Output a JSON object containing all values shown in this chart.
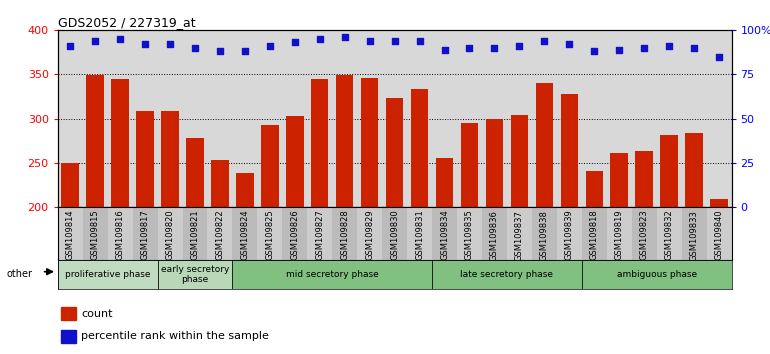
{
  "title": "GDS2052 / 227319_at",
  "samples": [
    "GSM109814",
    "GSM109815",
    "GSM109816",
    "GSM109817",
    "GSM109820",
    "GSM109821",
    "GSM109822",
    "GSM109824",
    "GSM109825",
    "GSM109826",
    "GSM109827",
    "GSM109828",
    "GSM109829",
    "GSM109830",
    "GSM109831",
    "GSM109834",
    "GSM109835",
    "GSM109836",
    "GSM109837",
    "GSM109838",
    "GSM109839",
    "GSM109818",
    "GSM109819",
    "GSM109823",
    "GSM109832",
    "GSM109833",
    "GSM109840"
  ],
  "counts": [
    250,
    349,
    345,
    309,
    309,
    278,
    253,
    238,
    293,
    303,
    345,
    349,
    346,
    323,
    333,
    255,
    295,
    300,
    304,
    340,
    328,
    241,
    261,
    263,
    281,
    284,
    209
  ],
  "percentiles": [
    91,
    94,
    95,
    92,
    92,
    90,
    88,
    88,
    91,
    93,
    95,
    96,
    94,
    94,
    94,
    89,
    90,
    90,
    91,
    94,
    92,
    88,
    89,
    90,
    91,
    90,
    85
  ],
  "bar_color": "#cc2200",
  "dot_color": "#1111cc",
  "bar_bottom": 200,
  "left_ylim": [
    200,
    400
  ],
  "right_ylim": [
    0,
    100
  ],
  "left_yticks": [
    200,
    250,
    300,
    350,
    400
  ],
  "right_yticks": [
    0,
    25,
    50,
    75,
    100
  ],
  "right_yticklabels": [
    "0",
    "25",
    "50",
    "75",
    "100%"
  ],
  "grid_values": [
    250,
    300,
    350
  ],
  "plot_bg": "#d8d8d8",
  "col_bg_even": "#cccccc",
  "col_bg_odd": "#bbbbbb",
  "phase_data": [
    {
      "label": "proliferative phase",
      "start": 0,
      "end": 4,
      "color": "#c0dcc0"
    },
    {
      "label": "early secretory\nphase",
      "start": 4,
      "end": 7,
      "color": "#b8d8b8"
    },
    {
      "label": "mid secretory phase",
      "start": 7,
      "end": 15,
      "color": "#80c080"
    },
    {
      "label": "late secretory phase",
      "start": 15,
      "end": 21,
      "color": "#80c080"
    },
    {
      "label": "ambiguous phase",
      "start": 21,
      "end": 27,
      "color": "#80c080"
    }
  ]
}
